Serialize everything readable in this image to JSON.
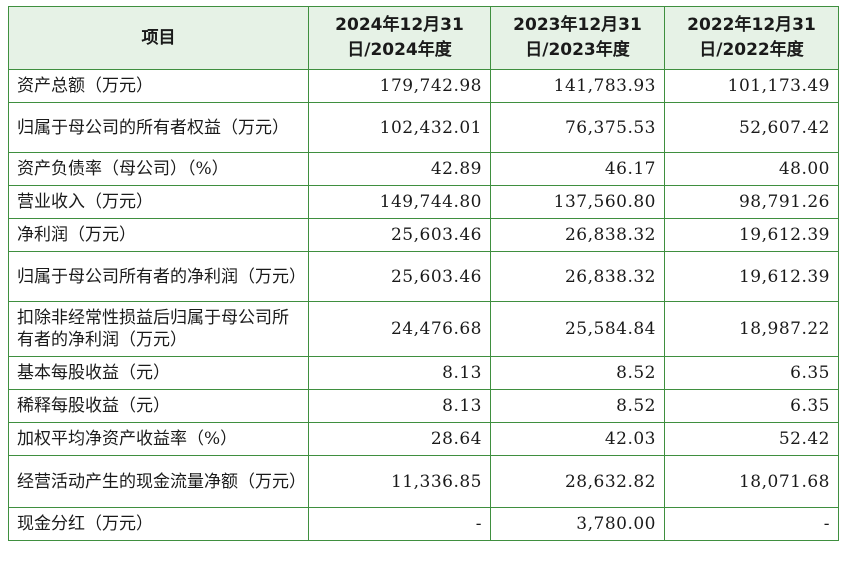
{
  "headers": [
    "项目",
    "2024年12月31日/2024年度",
    "2023年12月31日/2023年度",
    "2022年12月31日/2022年度"
  ],
  "rows": [
    {
      "label": "资产总额（万元）",
      "v2024": "179,742.98",
      "v2023": "141,783.93",
      "v2022": "101,173.49"
    },
    {
      "label": "归属于母公司的所有者权益（万元）",
      "v2024": "102,432.01",
      "v2023": "76,375.53",
      "v2022": "52,607.42"
    },
    {
      "label": "资产负债率（母公司）（%）",
      "v2024": "42.89",
      "v2023": "46.17",
      "v2022": "48.00"
    },
    {
      "label": "营业收入（万元）",
      "v2024": "149,744.80",
      "v2023": "137,560.80",
      "v2022": "98,791.26"
    },
    {
      "label": "净利润（万元）",
      "v2024": "25,603.46",
      "v2023": "26,838.32",
      "v2022": "19,612.39"
    },
    {
      "label": "归属于母公司所有者的净利润（万元）",
      "v2024": "25,603.46",
      "v2023": "26,838.32",
      "v2022": "19,612.39"
    },
    {
      "label": "扣除非经常性损益后归属于母公司所有者的净利润（万元）",
      "v2024": "24,476.68",
      "v2023": "25,584.84",
      "v2022": "18,987.22"
    },
    {
      "label": "基本每股收益（元）",
      "v2024": "8.13",
      "v2023": "8.52",
      "v2022": "6.35"
    },
    {
      "label": "稀释每股收益（元）",
      "v2024": "8.13",
      "v2023": "8.52",
      "v2022": "6.35"
    },
    {
      "label": "加权平均净资产收益率（%）",
      "v2024": "28.64",
      "v2023": "42.03",
      "v2022": "52.42"
    },
    {
      "label": "经营活动产生的现金流量净额（万元）",
      "v2024": "11,336.85",
      "v2023": "28,632.82",
      "v2022": "18,071.68"
    },
    {
      "label": "现金分红（万元）",
      "v2024": "-",
      "v2023": "3,780.00",
      "v2022": "-"
    }
  ]
}
